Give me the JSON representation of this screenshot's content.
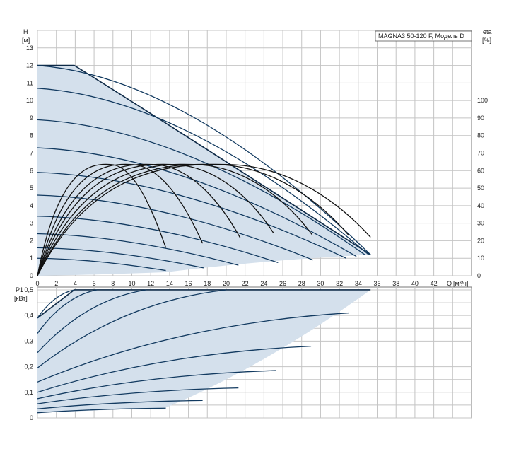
{
  "chart_data": [
    {
      "type": "line",
      "model_label": "MAGNA3 50-120 F, Модель D",
      "ylabel_left": "H",
      "ylabel_left_unit": "[м]",
      "ylabel_right": "eta",
      "ylabel_right_unit": "[%]",
      "xlabel": "Q",
      "xlabel_unit": "[м³/ч]",
      "xlim": [
        0,
        46
      ],
      "ylim": [
        0,
        14
      ],
      "eta_lim": [
        0,
        140
      ],
      "grid": true,
      "x_ticks": [
        0,
        2,
        4,
        6,
        8,
        10,
        12,
        14,
        16,
        18,
        20,
        22,
        24,
        26,
        28,
        30,
        32,
        34,
        36,
        38,
        40,
        42
      ],
      "x_tick_labels": [
        "0",
        "2",
        "4",
        "6",
        "8",
        "10",
        "12",
        "14",
        "16",
        "18",
        "20",
        "22",
        "24",
        "26",
        "28",
        "30",
        "32",
        "34",
        "36",
        "38",
        "40",
        "42"
      ],
      "y_ticks": [
        0,
        1,
        2,
        3,
        4,
        5,
        6,
        7,
        8,
        9,
        10,
        11,
        12,
        13
      ],
      "y_tick_labels": [
        "0",
        "1",
        "2",
        "3",
        "4",
        "5",
        "6",
        "7",
        "8",
        "9",
        "10",
        "11",
        "12",
        "13"
      ],
      "eta_ticks": [
        0,
        10,
        20,
        30,
        40,
        50,
        60,
        70,
        80,
        90,
        100
      ],
      "eta_tick_labels": [
        "0",
        "10",
        "20",
        "30",
        "40",
        "50",
        "60",
        "70",
        "80",
        "90",
        "100"
      ],
      "operating_area": [
        [
          0,
          12
        ],
        [
          3.9,
          12
        ],
        [
          35.3,
          1.2
        ],
        [
          13.6,
          0.2
        ],
        [
          0,
          0
        ]
      ],
      "head_curves": [
        {
          "start_h": 12.0,
          "end": [
            35.3,
            1.2
          ]
        },
        {
          "start_h": 10.7,
          "end": [
            35.1,
            1.2
          ]
        },
        {
          "start_h": 8.9,
          "end": [
            34.7,
            1.2
          ]
        },
        {
          "start_h": 7.3,
          "end": [
            33.8,
            1.1
          ]
        },
        {
          "start_h": 5.9,
          "end": [
            32.7,
            1.0
          ]
        },
        {
          "start_h": 4.6,
          "end": [
            29.2,
            0.9
          ]
        },
        {
          "start_h": 3.4,
          "end": [
            25.5,
            0.75
          ]
        },
        {
          "start_h": 2.4,
          "end": [
            21.3,
            0.6
          ]
        },
        {
          "start_h": 1.6,
          "end": [
            17.6,
            0.45
          ]
        },
        {
          "start_h": 1.0,
          "end": [
            13.6,
            0.3
          ]
        }
      ],
      "efficiency_curves": [
        {
          "end": [
            35.3,
            22
          ]
        },
        {
          "end": [
            33.0,
            23
          ]
        },
        {
          "end": [
            29.1,
            23.5
          ]
        },
        {
          "end": [
            25.0,
            24.5
          ]
        },
        {
          "end": [
            21.5,
            21.5
          ]
        },
        {
          "end": [
            17.5,
            18.5
          ]
        },
        {
          "end": [
            13.6,
            16
          ]
        }
      ],
      "efficiency_max": 63.5
    },
    {
      "type": "line",
      "ylabel": "P1",
      "ylabel_unit": "[кВт]",
      "xlim": [
        0,
        46
      ],
      "ylim": [
        0,
        0.5
      ],
      "grid": true,
      "y_ticks": [
        0,
        0.1,
        0.2,
        0.3,
        0.4,
        0.5
      ],
      "y_tick_labels": [
        "0",
        "0,1",
        "0,2",
        "0,3",
        "0,4",
        "0,5"
      ],
      "operating_area": [
        [
          0,
          0.39
        ],
        [
          3.9,
          0.5
        ],
        [
          35.3,
          0.5
        ],
        [
          13.6,
          0.04
        ],
        [
          0,
          0.02
        ]
      ],
      "power_curves": [
        {
          "start": 0.39,
          "end": [
            3.9,
            0.5
          ]
        },
        {
          "start": 0.33,
          "end": [
            6.3,
            0.5
          ]
        },
        {
          "start": 0.255,
          "end": [
            11.5,
            0.5
          ]
        },
        {
          "start": 0.195,
          "end": [
            20.0,
            0.5
          ]
        },
        {
          "start": 0.14,
          "end": [
            33.0,
            0.41
          ]
        },
        {
          "start": 0.1,
          "end": [
            29.0,
            0.28
          ]
        },
        {
          "start": 0.075,
          "end": [
            25.3,
            0.185
          ]
        },
        {
          "start": 0.055,
          "end": [
            21.3,
            0.117
          ]
        },
        {
          "start": 0.035,
          "end": [
            17.5,
            0.068
          ]
        },
        {
          "start": 0.02,
          "end": [
            13.6,
            0.038
          ]
        }
      ]
    }
  ]
}
